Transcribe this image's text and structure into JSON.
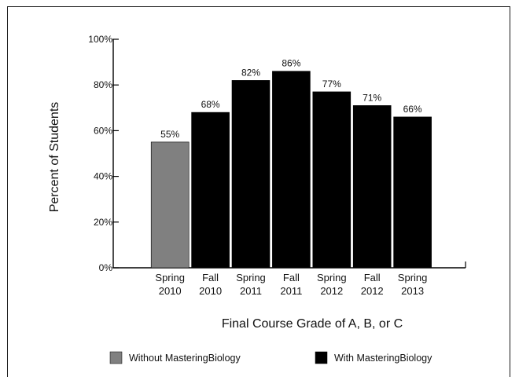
{
  "chart_data": {
    "type": "bar",
    "title": "",
    "xlabel": "Final Course Grade of A, B, or C",
    "ylabel": "Percent of Students",
    "ylim": [
      0,
      100
    ],
    "yticks": [
      "0%",
      "20%",
      "40%",
      "60%",
      "80%",
      "100%"
    ],
    "categories": [
      [
        "Spring",
        "2010"
      ],
      [
        "Fall",
        "2010"
      ],
      [
        "Spring",
        "2011"
      ],
      [
        "Fall",
        "2011"
      ],
      [
        "Spring",
        "2012"
      ],
      [
        "Fall",
        "2012"
      ],
      [
        "Spring",
        "2013"
      ]
    ],
    "values": [
      55,
      68,
      82,
      86,
      77,
      71,
      66
    ],
    "data_labels": [
      "55%",
      "68%",
      "82%",
      "86%",
      "77%",
      "71%",
      "66%"
    ],
    "groups": [
      0,
      1,
      1,
      1,
      1,
      1,
      1
    ],
    "legend": [
      {
        "label": "Without MasteringBiology",
        "color": "#808080"
      },
      {
        "label": "With MasteringBiology",
        "color": "#000000"
      }
    ],
    "legend_position": "bottom",
    "grid": false
  }
}
